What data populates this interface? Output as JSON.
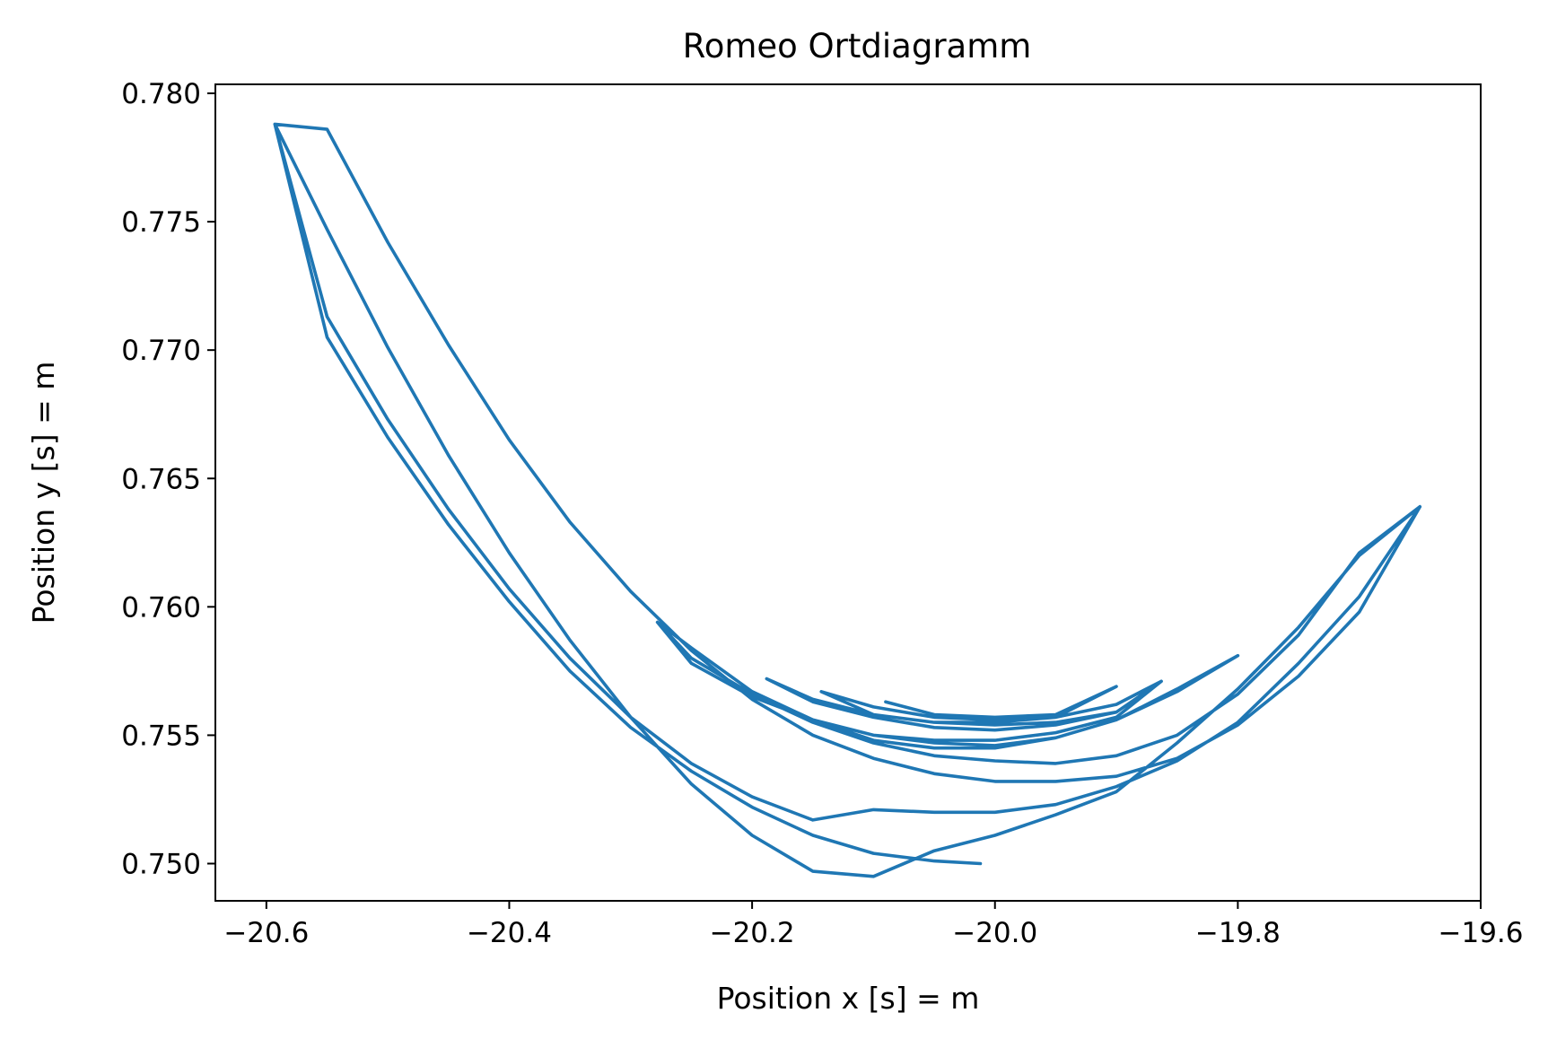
{
  "chart_data": {
    "type": "line",
    "title": "Romeo Ortdiagramm",
    "xlabel": "Position x [s] = m",
    "ylabel": "Position y [s] = m",
    "xlim": [
      -20.642,
      -19.6
    ],
    "ylim": [
      0.74855,
      0.78035
    ],
    "xticks": [
      -20.6,
      -20.4,
      -20.2,
      -20.0,
      -19.8,
      -19.6
    ],
    "xtick_labels": [
      "−20.6",
      "−20.4",
      "−20.2",
      "−20.0",
      "−19.8",
      "−19.6"
    ],
    "yticks": [
      0.75,
      0.755,
      0.76,
      0.765,
      0.77,
      0.775,
      0.78
    ],
    "ytick_labels": [
      "0.750",
      "0.755",
      "0.760",
      "0.765",
      "0.770",
      "0.775",
      "0.780"
    ],
    "grid": false,
    "color": "#1f77b4",
    "series": [
      {
        "x": [
          -20.012,
          -20.05,
          -20.1,
          -20.15,
          -20.2,
          -20.25,
          -20.3,
          -20.35,
          -20.4,
          -20.45,
          -20.5,
          -20.55,
          -20.593,
          -20.55,
          -20.5,
          -20.45,
          -20.4,
          -20.35,
          -20.3,
          -20.25,
          -20.2,
          -20.15,
          -20.1,
          -20.05,
          -20.0,
          -19.95,
          -19.9,
          -19.85,
          -19.8,
          -19.75,
          -19.7,
          -19.65,
          -19.7,
          -19.75,
          -19.8,
          -19.85,
          -19.9,
          -19.95,
          -20.0,
          -20.05,
          -20.1,
          -20.15,
          -20.2,
          -20.25,
          -20.3,
          -20.35,
          -20.4,
          -20.45,
          -20.5,
          -20.55,
          -20.593,
          -20.55,
          -20.5,
          -20.45,
          -20.4,
          -20.35,
          -20.3,
          -20.25,
          -20.2,
          -20.15,
          -20.1,
          -20.05,
          -20.0,
          -19.95,
          -19.9,
          -19.85,
          -19.8,
          -19.75,
          -19.7,
          -19.65,
          -19.7,
          -19.75,
          -19.8,
          -19.85,
          -19.9,
          -19.95,
          -20.0,
          -20.05,
          -20.1,
          -20.15,
          -20.2,
          -20.25,
          -20.278,
          -20.25,
          -20.2,
          -20.15,
          -20.1,
          -20.05,
          -20.0,
          -19.95,
          -19.9,
          -19.85,
          -19.8,
          -19.85,
          -19.9,
          -19.95,
          -20.0,
          -20.05,
          -20.1,
          -20.15,
          -20.2,
          -20.25,
          -20.278,
          -20.25,
          -20.2,
          -20.15,
          -20.1,
          -20.05,
          -20.0,
          -19.95,
          -19.9,
          -19.863,
          -19.9,
          -19.95,
          -20.0,
          -20.05,
          -20.1,
          -20.15,
          -20.188,
          -20.15,
          -20.1,
          -20.05,
          -20.0,
          -19.95,
          -19.9,
          -19.863,
          -19.9,
          -19.95,
          -20.0,
          -20.05,
          -20.1,
          -20.143,
          -20.1,
          -20.05,
          -20.0,
          -19.95,
          -19.9,
          -19.95,
          -20.0,
          -20.05,
          -20.09
        ],
        "y": [
          0.75,
          0.7501,
          0.7504,
          0.7511,
          0.7522,
          0.7536,
          0.7553,
          0.7575,
          0.7602,
          0.7632,
          0.7666,
          0.7705,
          0.7788,
          0.7713,
          0.7673,
          0.7638,
          0.7607,
          0.758,
          0.7557,
          0.7539,
          0.7526,
          0.7517,
          0.7521,
          0.752,
          0.752,
          0.7523,
          0.753,
          0.754,
          0.7555,
          0.7578,
          0.7604,
          0.7639,
          0.7598,
          0.7573,
          0.7554,
          0.7541,
          0.7534,
          0.7532,
          0.7532,
          0.7535,
          0.7541,
          0.755,
          0.7564,
          0.7583,
          0.7606,
          0.7633,
          0.7665,
          0.7702,
          0.7742,
          0.7786,
          0.7788,
          0.7747,
          0.7701,
          0.7659,
          0.7621,
          0.7587,
          0.7557,
          0.7531,
          0.7511,
          0.7497,
          0.7495,
          0.7505,
          0.7511,
          0.7519,
          0.7528,
          0.7547,
          0.7568,
          0.7592,
          0.762,
          0.7639,
          0.7621,
          0.7589,
          0.7566,
          0.755,
          0.7542,
          0.7539,
          0.754,
          0.7542,
          0.7547,
          0.7555,
          0.7566,
          0.758,
          0.7594,
          0.7584,
          0.7567,
          0.7556,
          0.7548,
          0.7545,
          0.7545,
          0.7549,
          0.7556,
          0.7567,
          0.7581,
          0.7568,
          0.7556,
          0.7549,
          0.7546,
          0.7547,
          0.755,
          0.7556,
          0.7565,
          0.7578,
          0.7594,
          0.7584,
          0.7567,
          0.7556,
          0.755,
          0.7548,
          0.7548,
          0.7551,
          0.7557,
          0.7571,
          0.7559,
          0.7554,
          0.7552,
          0.7553,
          0.7557,
          0.7563,
          0.7572,
          0.7564,
          0.7558,
          0.7555,
          0.7554,
          0.7555,
          0.7559,
          0.7571,
          0.7562,
          0.7557,
          0.7555,
          0.7555,
          0.7558,
          0.7567,
          0.7561,
          0.7557,
          0.7556,
          0.7557,
          0.7569,
          0.7558,
          0.7557,
          0.7558,
          0.7563
        ]
      }
    ]
  }
}
